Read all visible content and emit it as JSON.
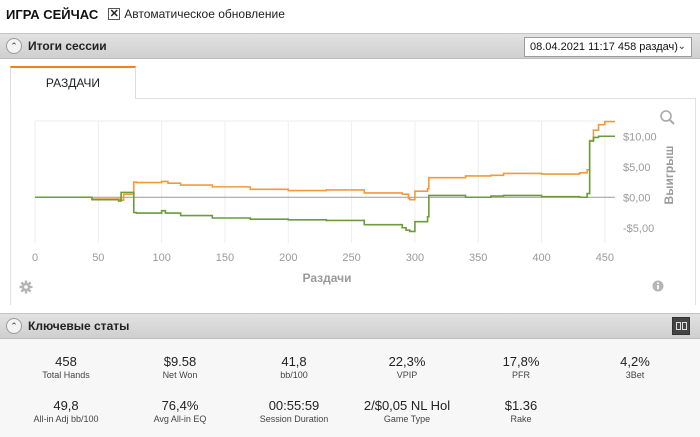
{
  "topbar": {
    "title": "ИГРА СЕЙЧАС",
    "checkbox_mark": "✕",
    "checkbox_label": "Автоматическое обновление"
  },
  "session_panel": {
    "title": "Итоги сессии",
    "collapse_glyph": "⌃",
    "selected_session": "08.04.2021 11:17 458 раздач)",
    "dropdown_icon": "chevron-down-icon",
    "tab_label": "РАЗДАЧИ"
  },
  "chart_data": {
    "type": "line",
    "xlabel": "Раздачи",
    "ylabel": "Выигрыш",
    "xlim": [
      0,
      458
    ],
    "ylim": [
      -7.5,
      12.5
    ],
    "xticks": [
      0,
      50,
      100,
      150,
      200,
      250,
      300,
      350,
      400,
      450
    ],
    "yticks": [
      10,
      5,
      0,
      -5
    ],
    "ytick_labels": [
      "$10,00",
      "$5,00",
      "$0,00",
      "-$5,00"
    ],
    "grid": "vertical",
    "series": [
      {
        "color": "#f29a3a",
        "x": [
          0,
          20,
          45,
          68,
          70,
          75,
          78,
          80,
          100,
          105,
          115,
          140,
          170,
          200,
          230,
          260,
          290,
          295,
          296,
          300,
          310,
          311,
          340,
          360,
          370,
          400,
          430,
          436,
          438,
          441,
          445,
          450,
          458
        ],
        "values": [
          0,
          0,
          -0.3,
          -0.5,
          0.5,
          0.5,
          2.5,
          2.4,
          2.6,
          2.3,
          2.0,
          1.7,
          1.3,
          1.1,
          1.2,
          0.7,
          0.5,
          -0.2,
          -0.4,
          1.0,
          1.4,
          3.2,
          3.5,
          3.6,
          3.9,
          3.8,
          4.0,
          4.5,
          9.3,
          11.0,
          11.9,
          12.4,
          12.4
        ]
      },
      {
        "color": "#6a9c3a",
        "x": [
          0,
          20,
          45,
          66,
          68,
          75,
          78,
          80,
          100,
          103,
          115,
          140,
          170,
          200,
          230,
          260,
          290,
          293,
          296,
          300,
          310,
          311,
          340,
          360,
          370,
          400,
          430,
          436,
          438,
          441,
          445,
          450,
          458
        ],
        "values": [
          0,
          0,
          -0.4,
          -0.6,
          0.8,
          0.8,
          -2.5,
          -2.6,
          -2.2,
          -2.6,
          -3.0,
          -3.4,
          -3.6,
          -3.7,
          -3.8,
          -4.5,
          -5.0,
          -5.4,
          -5.6,
          -4.0,
          -3.2,
          0.3,
          0.0,
          0.2,
          0.3,
          0.1,
          0.0,
          0.6,
          9.2,
          9.8,
          10.0,
          10.0,
          10.0
        ]
      }
    ]
  },
  "chart_icons": {
    "zoom": "magnifier-icon",
    "settings": "gear-icon",
    "info": "info-icon"
  },
  "stats_panel": {
    "title": "Ключевые статы",
    "collapse_glyph": "⌃",
    "layout_toggle_icon": "columns-icon",
    "stats": [
      {
        "value": "458",
        "label": "Total Hands"
      },
      {
        "value": "$9.58",
        "label": "Net Won"
      },
      {
        "value": "41,8",
        "label": "bb/100"
      },
      {
        "value": "22,3%",
        "label": "VPIP"
      },
      {
        "value": "17,8%",
        "label": "PFR"
      },
      {
        "value": "4,2%",
        "label": "3Bet"
      },
      {
        "value": "49,8",
        "label": "All-in Adj bb/100"
      },
      {
        "value": "76,4%",
        "label": "Avg All-in EQ"
      },
      {
        "value": "00:55:59",
        "label": "Session Duration"
      },
      {
        "value": "2/$0,05 NL Hol",
        "label": "Game Type"
      },
      {
        "value": "$1.36",
        "label": "Rake"
      }
    ]
  }
}
